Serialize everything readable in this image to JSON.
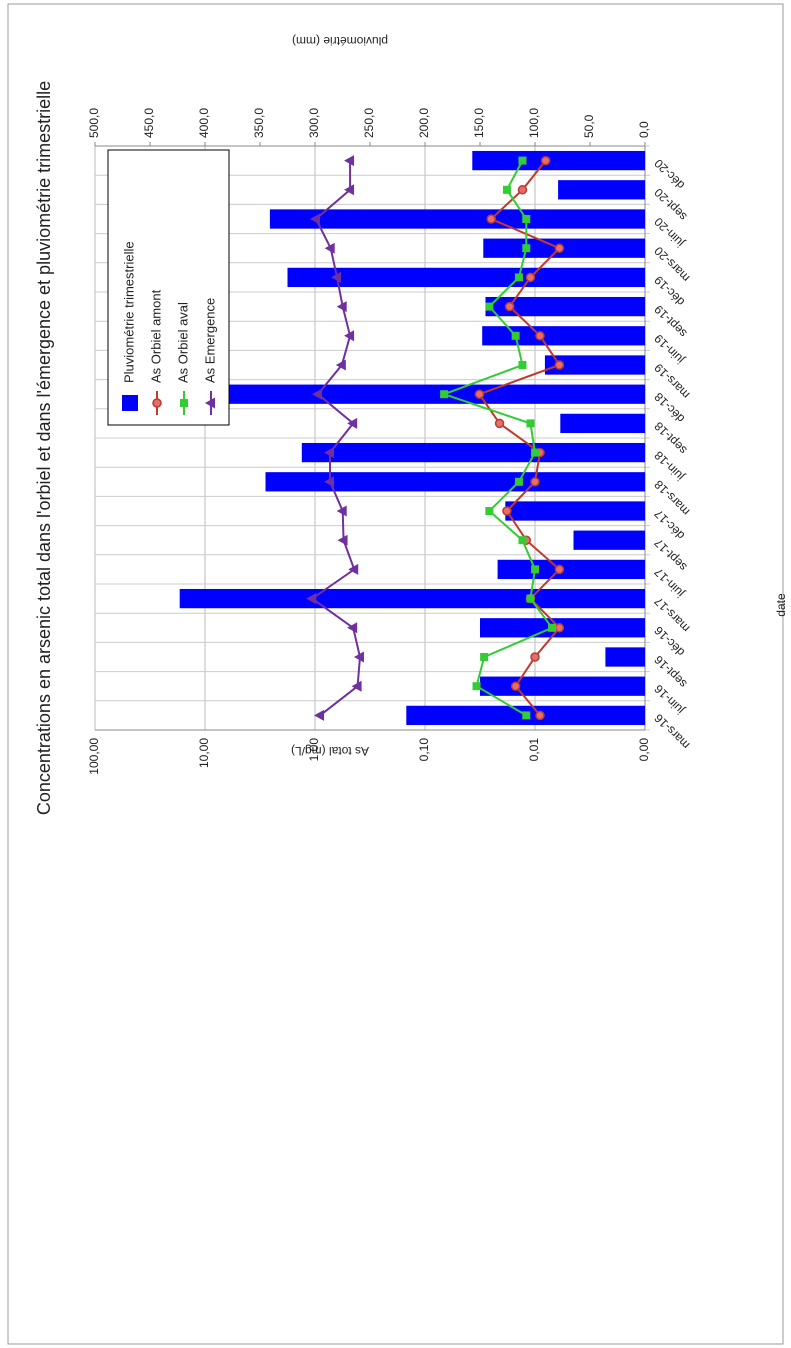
{
  "chart_data": {
    "type": "combo",
    "title": "Concentrations en arsenic total dans l'orbiel et dans l'émergence et pluviométrie trimestrielle",
    "x_label": "date",
    "y_label": "As total (mg/L)",
    "y2_label": "pluviométrie (mm)",
    "categories": [
      "mars-16",
      "juin-16",
      "sept-16",
      "déc-16",
      "mars-17",
      "juin-17",
      "sept-17",
      "déc-17",
      "mars-18",
      "juin-18",
      "sept-18",
      "déc-18",
      "mars-19",
      "juin-19",
      "sept-19",
      "déc-19",
      "mars-20",
      "juin-20",
      "sept-20",
      "déc-20"
    ],
    "series": [
      {
        "name": "Pluviométrie trimestrielle",
        "type": "bar",
        "axis": "y2",
        "color": "#0000ff",
        "values": [
          217,
          150,
          36,
          150,
          423,
          134,
          65,
          127,
          345,
          312,
          77,
          420,
          91,
          148,
          145,
          325,
          147,
          341,
          79,
          157
        ]
      },
      {
        "name": "As Orbiel amont",
        "type": "line",
        "marker": "circle",
        "color": "#c0392b",
        "values": [
          0.009,
          0.015,
          0.01,
          0.006,
          0.011,
          0.006,
          0.012,
          0.018,
          0.01,
          0.009,
          0.021,
          0.032,
          0.006,
          0.009,
          0.017,
          0.011,
          0.006,
          0.025,
          0.013,
          0.008
        ]
      },
      {
        "name": "As Orbiel aval",
        "type": "line",
        "marker": "square",
        "color": "#33cc33",
        "values": [
          0.012,
          0.034,
          0.029,
          0.007,
          0.011,
          0.01,
          0.013,
          0.026,
          0.014,
          0.01,
          0.011,
          0.067,
          0.013,
          0.015,
          0.026,
          0.014,
          0.012,
          0.012,
          0.018,
          0.013
        ]
      },
      {
        "name": "As Emergence",
        "type": "line",
        "marker": "triangle",
        "color": "#7030a0",
        "values": [
          0.9,
          0.41,
          0.39,
          0.45,
          1.06,
          0.44,
          0.55,
          0.56,
          0.73,
          0.73,
          0.45,
          0.94,
          0.57,
          0.48,
          0.56,
          0.63,
          0.72,
          0.98,
          0.48,
          0.48
        ]
      }
    ],
    "yscale": "log",
    "ylim": [
      0.001,
      100
    ],
    "yticks": [
      {
        "value": 0.001,
        "label": "0,00"
      },
      {
        "value": 0.01,
        "label": "0,01"
      },
      {
        "value": 0.1,
        "label": "0,10"
      },
      {
        "value": 1,
        "label": "1,00"
      },
      {
        "value": 10,
        "label": "10,00"
      },
      {
        "value": 100,
        "label": "100,00"
      }
    ],
    "y2lim": [
      0,
      500
    ],
    "y2ticks": [
      {
        "value": 0,
        "label": "0,0"
      },
      {
        "value": 50,
        "label": "50,0"
      },
      {
        "value": 100,
        "label": "100,0"
      },
      {
        "value": 150,
        "label": "150,0"
      },
      {
        "value": 200,
        "label": "200,0"
      },
      {
        "value": 250,
        "label": "250,0"
      },
      {
        "value": 300,
        "label": "300,0"
      },
      {
        "value": 350,
        "label": "350,0"
      },
      {
        "value": 400,
        "label": "400,0"
      },
      {
        "value": 450,
        "label": "450,0"
      },
      {
        "value": 500,
        "label": "500,0"
      }
    ],
    "grid": true,
    "legend": "top-right"
  }
}
